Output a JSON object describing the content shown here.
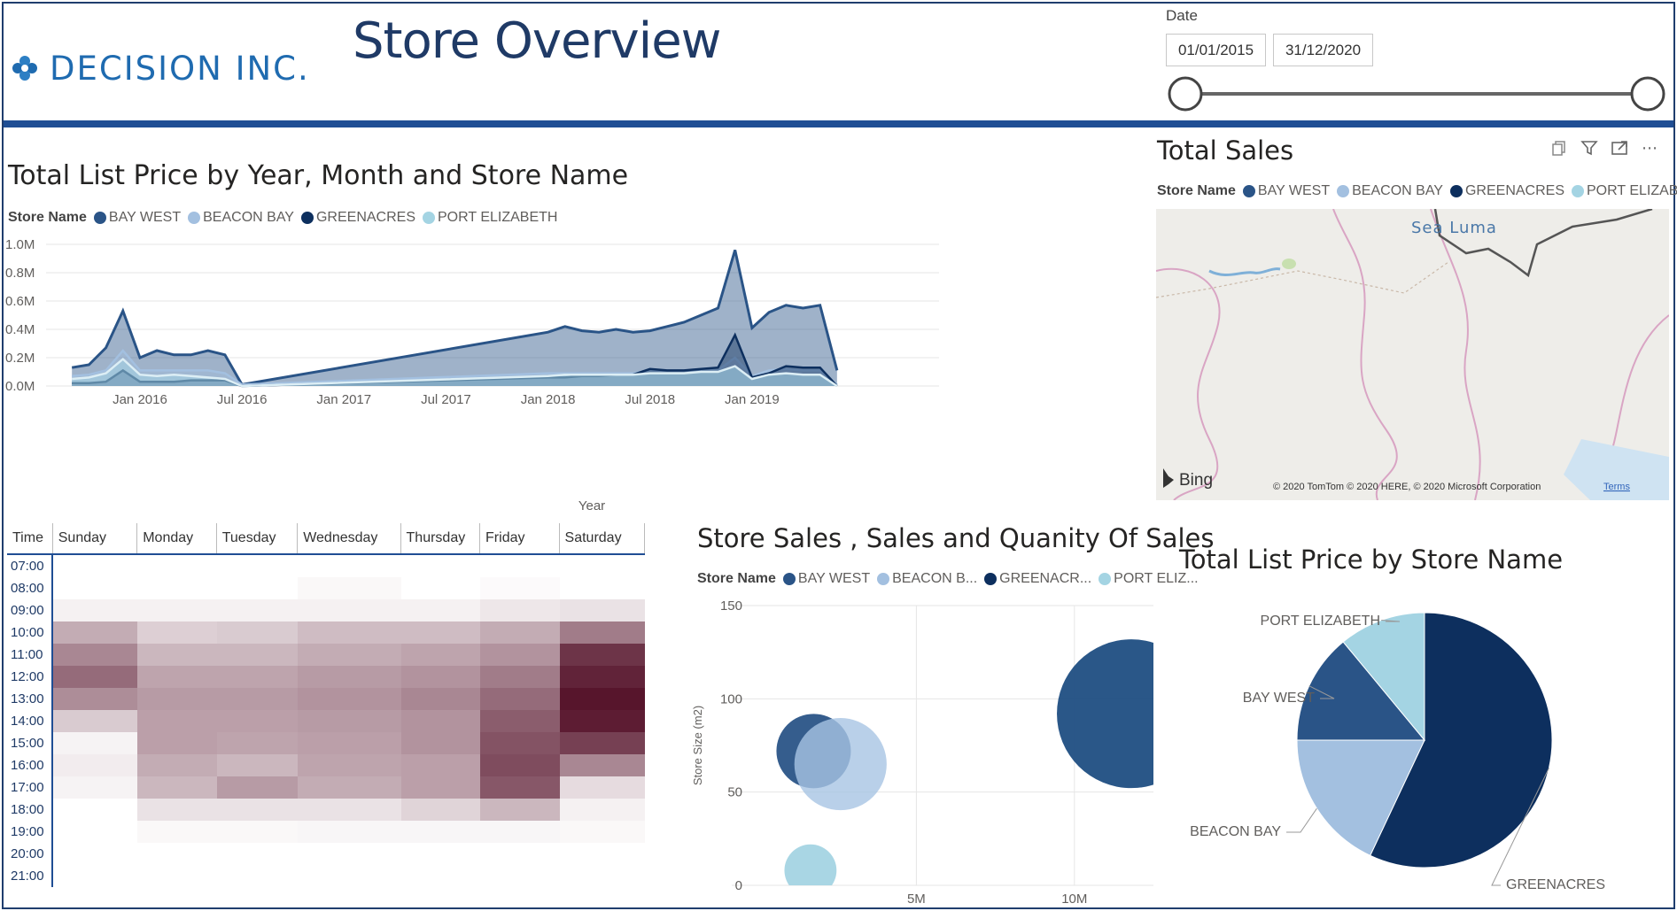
{
  "header": {
    "logo_text": "DECISION INC.",
    "title": "Store Overview"
  },
  "date_slicer": {
    "label": "Date",
    "start": "01/01/2015",
    "end": "31/12/2020"
  },
  "colors": {
    "bay_west": "#2a5487",
    "beacon_bay": "#a3c0e0",
    "greenacres": "#0d2f5e",
    "port_elizabeth": "#a4d4e3",
    "header_rule": "#1f4e94"
  },
  "area_chart": {
    "title": "Total List Price by Year, Month and Store Name",
    "legend_label": "Store Name",
    "legend": [
      "BAY WEST",
      "BEACON BAY",
      "GREENACRES",
      "PORT ELIZABETH"
    ],
    "y_ticks": [
      "1.0M",
      "0.8M",
      "0.6M",
      "0.4M",
      "0.2M",
      "0.0M"
    ],
    "x_ticks": [
      "Jan 2016",
      "Jul 2016",
      "Jan 2017",
      "Jul 2017",
      "Jan 2018",
      "Jul 2018",
      "Jan 2019"
    ],
    "x_title": "Year"
  },
  "map": {
    "title": "Total Sales",
    "legend_label": "Store Name",
    "legend": [
      "BAY WEST",
      "BEACON BAY",
      "GREENACRES",
      "PORT ELIZABETH"
    ],
    "place_label": "Sea Luma",
    "bing_label": "Bing",
    "copyright": "© 2020 TomTom © 2020 HERE, © 2020 Microsoft Corporation",
    "terms": "Terms",
    "icons": [
      "copy-icon",
      "filter-icon",
      "focus-mode-icon",
      "more-options-icon"
    ]
  },
  "matrix": {
    "headers": [
      "Time",
      "Sunday",
      "Monday",
      "Tuesday",
      "Wednesday",
      "Thursday",
      "Friday",
      "Saturday"
    ],
    "times": [
      "07:00",
      "08:00",
      "09:00",
      "10:00",
      "11:00",
      "12:00",
      "13:00",
      "14:00",
      "15:00",
      "16:00",
      "17:00",
      "18:00",
      "19:00",
      "20:00",
      "21:00"
    ],
    "intensity": [
      [
        0,
        0,
        0,
        0,
        0,
        0,
        0
      ],
      [
        0,
        0,
        0,
        0.03,
        0,
        0.02,
        0
      ],
      [
        0.06,
        0.06,
        0.06,
        0.06,
        0.06,
        0.1,
        0.12
      ],
      [
        0.35,
        0.2,
        0.22,
        0.28,
        0.28,
        0.35,
        0.55
      ],
      [
        0.5,
        0.3,
        0.3,
        0.35,
        0.38,
        0.45,
        0.85
      ],
      [
        0.62,
        0.38,
        0.38,
        0.42,
        0.45,
        0.55,
        0.92
      ],
      [
        0.48,
        0.42,
        0.42,
        0.45,
        0.5,
        0.62,
        0.98
      ],
      [
        0.22,
        0.4,
        0.4,
        0.42,
        0.45,
        0.68,
        0.95
      ],
      [
        0.05,
        0.4,
        0.38,
        0.4,
        0.45,
        0.72,
        0.8
      ],
      [
        0.08,
        0.35,
        0.3,
        0.38,
        0.4,
        0.75,
        0.5
      ],
      [
        0.05,
        0.3,
        0.42,
        0.35,
        0.4,
        0.7,
        0.15
      ],
      [
        0,
        0.12,
        0.12,
        0.12,
        0.18,
        0.3,
        0.06
      ],
      [
        0,
        0.03,
        0.03,
        0.04,
        0.04,
        0.04,
        0.03
      ],
      [
        0,
        0,
        0,
        0,
        0,
        0,
        0
      ],
      [
        0,
        0,
        0,
        0,
        0,
        0,
        0
      ]
    ]
  },
  "scatter": {
    "title": "Store Sales , Sales and Quanity Of Sales",
    "legend_label": "Store Name",
    "legend": [
      "BAY WEST",
      "BEACON B...",
      "GREENACR...",
      "PORT ELIZ..."
    ],
    "y_title": "Store Size (m2)",
    "y_ticks": [
      "150",
      "100",
      "50",
      "0"
    ],
    "x_ticks": [
      "5M",
      "10M"
    ]
  },
  "pie": {
    "title": "Total List Price by Store Name",
    "labels": [
      "PORT ELIZABETH",
      "BAY WEST",
      "BEACON BAY",
      "GREENACRES"
    ]
  },
  "chart_data": [
    {
      "type": "area",
      "title": "Total List Price by Year, Month and Store Name",
      "xlabel": "Year",
      "ylabel": "",
      "ylim": [
        0,
        1000000
      ],
      "x": [
        "2015-09",
        "2015-10",
        "2015-11",
        "2015-12",
        "2016-01",
        "2016-02",
        "2016-03",
        "2016-04",
        "2016-05",
        "2016-06",
        "2016-07",
        "2018-01",
        "2018-02",
        "2018-03",
        "2018-04",
        "2018-05",
        "2018-06",
        "2018-07",
        "2018-08",
        "2018-09",
        "2018-10",
        "2018-11",
        "2018-12",
        "2019-01",
        "2019-02",
        "2019-03",
        "2019-04",
        "2019-05",
        "2019-06"
      ],
      "series": [
        {
          "name": "BAY WEST",
          "values": [
            130000,
            150000,
            270000,
            530000,
            200000,
            250000,
            220000,
            220000,
            250000,
            220000,
            10000,
            380000,
            420000,
            390000,
            380000,
            400000,
            380000,
            390000,
            420000,
            450000,
            500000,
            550000,
            960000,
            410000,
            520000,
            570000,
            550000,
            570000,
            110000
          ]
        },
        {
          "name": "BEACON BAY",
          "values": [
            70000,
            80000,
            110000,
            250000,
            110000,
            110000,
            110000,
            110000,
            110000,
            90000,
            10000,
            90000,
            90000,
            90000,
            90000,
            90000,
            90000,
            110000,
            110000,
            110000,
            110000,
            110000,
            200000,
            70000,
            110000,
            120000,
            110000,
            110000,
            10000
          ]
        },
        {
          "name": "GREENACRES",
          "values": [
            20000,
            20000,
            30000,
            110000,
            30000,
            30000,
            30000,
            40000,
            40000,
            40000,
            0,
            60000,
            60000,
            70000,
            70000,
            80000,
            80000,
            120000,
            110000,
            110000,
            120000,
            130000,
            360000,
            60000,
            90000,
            140000,
            130000,
            130000,
            0
          ]
        },
        {
          "name": "PORT ELIZABETH",
          "values": [
            50000,
            60000,
            90000,
            190000,
            80000,
            70000,
            80000,
            70000,
            60000,
            50000,
            0,
            70000,
            80000,
            80000,
            80000,
            80000,
            80000,
            90000,
            90000,
            90000,
            100000,
            100000,
            140000,
            50000,
            80000,
            90000,
            80000,
            80000,
            0
          ]
        }
      ]
    },
    {
      "type": "heatmap",
      "title": "",
      "x": [
        "Sunday",
        "Monday",
        "Tuesday",
        "Wednesday",
        "Thursday",
        "Friday",
        "Saturday"
      ],
      "y": [
        "07:00",
        "08:00",
        "09:00",
        "10:00",
        "11:00",
        "12:00",
        "13:00",
        "14:00",
        "15:00",
        "16:00",
        "17:00",
        "18:00",
        "19:00",
        "20:00",
        "21:00"
      ]
    },
    {
      "type": "scatter",
      "title": "Store Sales , Sales and Quanity Of Sales",
      "xlabel": "",
      "ylabel": "Store Size (m2)",
      "xlim": [
        0,
        12500000
      ],
      "ylim": [
        0,
        150
      ],
      "series": [
        {
          "name": "BAY WEST",
          "points": [
            {
              "x": 1750000,
              "y": 72,
              "size": 0.5
            }
          ]
        },
        {
          "name": "BEACON BAY",
          "points": [
            {
              "x": 2600000,
              "y": 65,
              "size": 0.62
            }
          ]
        },
        {
          "name": "GREENACRES",
          "points": [
            {
              "x": 11800000,
              "y": 92,
              "size": 1.0
            }
          ]
        },
        {
          "name": "PORT ELIZABETH",
          "points": [
            {
              "x": 1650000,
              "y": 8,
              "size": 0.35
            }
          ]
        }
      ]
    },
    {
      "type": "pie",
      "title": "Total List Price by Store Name",
      "categories": [
        "GREENACRES",
        "BEACON BAY",
        "BAY WEST",
        "PORT ELIZABETH"
      ],
      "values": [
        57,
        18,
        14,
        11
      ]
    }
  ]
}
